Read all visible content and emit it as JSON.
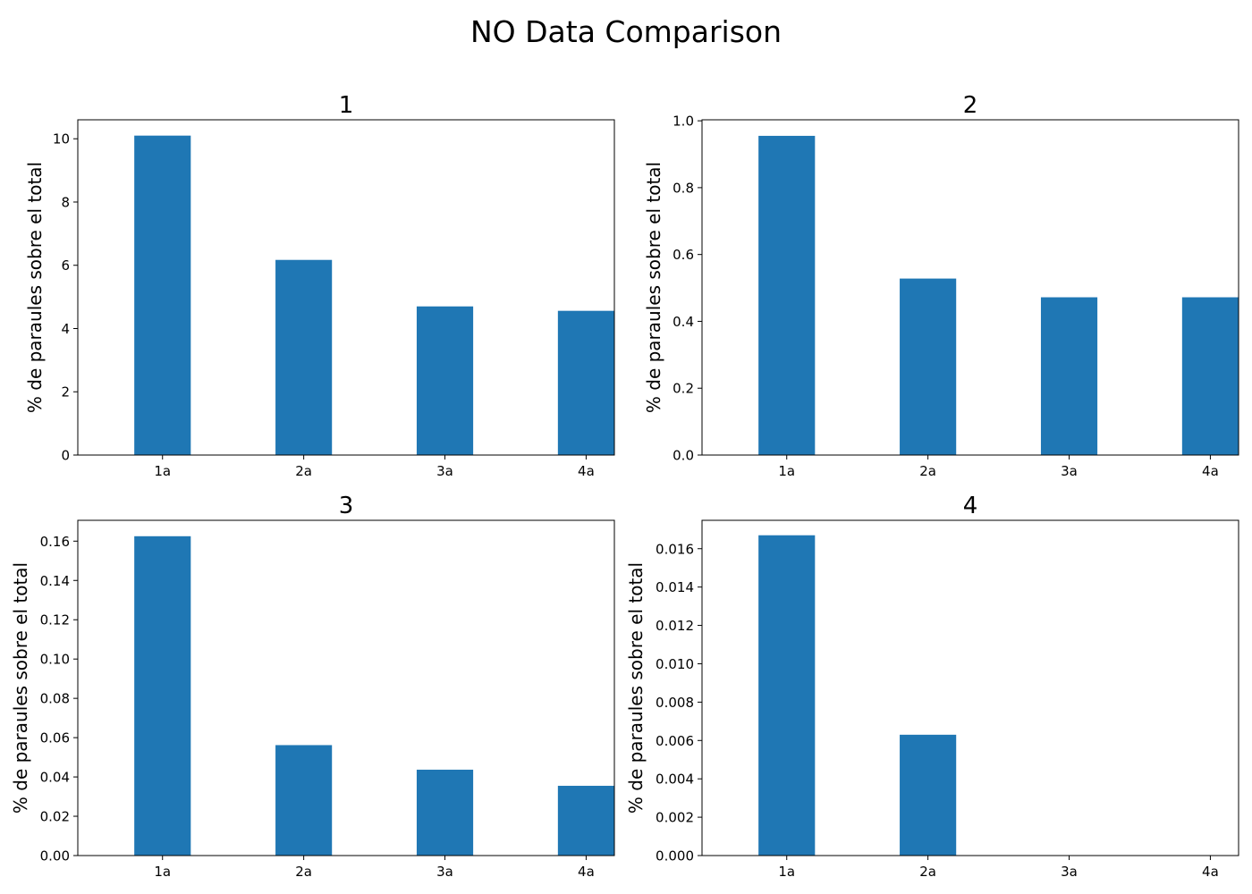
{
  "figure": {
    "title": "NO Data Comparison",
    "bar_color": "#1f77b4"
  },
  "chart_data": [
    {
      "type": "bar",
      "title": "1",
      "xlabel": "",
      "ylabel": "% de paraules sobre el total",
      "categories": [
        "1a",
        "2a",
        "3a",
        "4a"
      ],
      "values": [
        10.1,
        6.17,
        4.7,
        4.56
      ],
      "ylim": [
        0,
        10.6
      ],
      "yticks": [
        0,
        2,
        4,
        6,
        8,
        10
      ],
      "tick_labels": [
        "0",
        "2",
        "4",
        "6",
        "8",
        "10"
      ],
      "grid": false,
      "legend": "none"
    },
    {
      "type": "bar",
      "title": "2",
      "xlabel": "",
      "ylabel": "% de paraules sobre el total",
      "categories": [
        "1a",
        "2a",
        "3a",
        "4a"
      ],
      "values": [
        0.955,
        0.528,
        0.472,
        0.472
      ],
      "ylim": [
        0,
        1.003
      ],
      "yticks": [
        0,
        0.2,
        0.4,
        0.6,
        0.8,
        1.0
      ],
      "tick_labels": [
        "0.0",
        "0.2",
        "0.4",
        "0.6",
        "0.8",
        "1.0"
      ],
      "grid": false,
      "legend": "none"
    },
    {
      "type": "bar",
      "title": "3",
      "xlabel": "",
      "ylabel": "% de paraules sobre el total",
      "categories": [
        "1a",
        "2a",
        "3a",
        "4a"
      ],
      "values": [
        0.1625,
        0.0562,
        0.0437,
        0.0355
      ],
      "ylim": [
        0,
        0.1706
      ],
      "yticks": [
        0,
        0.02,
        0.04,
        0.06,
        0.08,
        0.1,
        0.12,
        0.14,
        0.16
      ],
      "tick_labels": [
        "0.00",
        "0.02",
        "0.04",
        "0.06",
        "0.08",
        "0.10",
        "0.12",
        "0.14",
        "0.16"
      ],
      "grid": false,
      "legend": "none"
    },
    {
      "type": "bar",
      "title": "4",
      "xlabel": "",
      "ylabel": "% de paraules sobre el total",
      "categories": [
        "1a",
        "2a",
        "3a",
        "4a"
      ],
      "values": [
        0.0167,
        0.0063,
        0,
        0
      ],
      "ylim": [
        0,
        0.01748
      ],
      "yticks": [
        0,
        0.002,
        0.004,
        0.006,
        0.008,
        0.01,
        0.012,
        0.014,
        0.016
      ],
      "tick_labels": [
        "0.000",
        "0.002",
        "0.004",
        "0.006",
        "0.008",
        "0.010",
        "0.012",
        "0.014",
        "0.016"
      ],
      "grid": false,
      "legend": "none"
    }
  ]
}
